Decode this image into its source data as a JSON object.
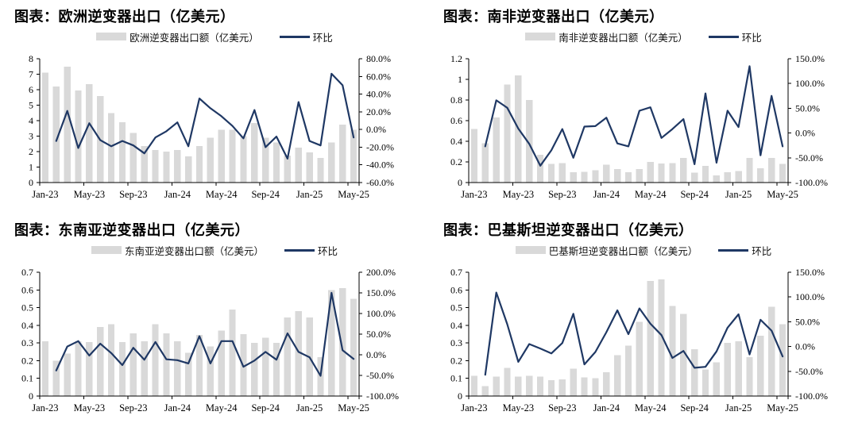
{
  "page": {
    "background": "#ffffff"
  },
  "colors": {
    "bar_fill": "#d9d9d9",
    "line_stroke": "#1f3864",
    "axis": "#000000",
    "text": "#000000"
  },
  "months": [
    "Jan-23",
    "Feb-23",
    "Mar-23",
    "Apr-23",
    "May-23",
    "Jun-23",
    "Jul-23",
    "Aug-23",
    "Sep-23",
    "Oct-23",
    "Nov-23",
    "Dec-23",
    "Jan-24",
    "Feb-24",
    "Mar-24",
    "Apr-24",
    "May-24",
    "Jun-24",
    "Jul-24",
    "Aug-24",
    "Sep-24",
    "Oct-24",
    "Nov-24",
    "Dec-24",
    "Jan-25",
    "Feb-25",
    "Mar-25",
    "Apr-25",
    "May-25"
  ],
  "x_tick_indices": [
    0,
    4,
    8,
    12,
    16,
    20,
    24,
    28
  ],
  "x_tick_labels": [
    "Jan-23",
    "May-23",
    "Sep-23",
    "Jan-24",
    "May-24",
    "Sep-24",
    "Jan-25",
    "May-25"
  ],
  "chart_data": [
    {
      "type": "bar+line",
      "title": "图表：欧洲逆变器出口（亿美元）",
      "legend": [
        "欧洲逆变器出口额（亿美元）",
        "环比"
      ],
      "left_axis": {
        "min": 0,
        "max": 8,
        "step": 1,
        "label": "亿美元"
      },
      "right_axis": {
        "min": -60,
        "max": 80,
        "step": 20,
        "unit": "%"
      },
      "bars": {
        "name": "欧洲逆变器出口额（亿美元）",
        "axis": "left",
        "values": [
          7.1,
          6.2,
          7.5,
          5.95,
          6.35,
          5.6,
          4.5,
          3.9,
          3.2,
          2.35,
          2.1,
          2.0,
          2.1,
          1.7,
          2.35,
          2.9,
          3.4,
          3.4,
          3.0,
          3.85,
          2.9,
          2.6,
          1.75,
          2.25,
          1.95,
          1.6,
          2.6,
          3.75,
          3.4
        ]
      },
      "line": {
        "name": "环比",
        "axis": "right",
        "values_pct": [
          null,
          -13,
          21,
          -21,
          7,
          -12,
          -19,
          -13,
          -18,
          -27,
          -9,
          -2,
          8,
          -19,
          35,
          24,
          15,
          4,
          -10,
          22,
          -20,
          -8,
          -33,
          31,
          -13,
          -18,
          63,
          50,
          -9
        ]
      }
    },
    {
      "type": "bar+line",
      "title": "图表：南非逆变器出口（亿美元）",
      "legend": [
        "南非逆变器出口额（亿美元）",
        "环比"
      ],
      "left_axis": {
        "min": 0,
        "max": 1.2,
        "step": 0.2,
        "label": "亿美元"
      },
      "right_axis": {
        "min": -100,
        "max": 150,
        "step": 50,
        "unit": "%"
      },
      "bars": {
        "name": "南非逆变器出口额（亿美元）",
        "axis": "left",
        "values": [
          0.52,
          0.38,
          0.63,
          0.95,
          1.04,
          0.8,
          0.27,
          0.18,
          0.19,
          0.1,
          0.105,
          0.12,
          0.175,
          0.13,
          0.1,
          0.13,
          0.2,
          0.185,
          0.19,
          0.24,
          0.095,
          0.16,
          0.07,
          0.1,
          0.11,
          0.24,
          0.14,
          0.24,
          0.18
        ]
      },
      "line": {
        "name": "环比",
        "axis": "right",
        "values_pct": [
          null,
          -27,
          66,
          51,
          9,
          -22,
          -66,
          -35,
          8,
          -50,
          13,
          14,
          31,
          -21,
          -27,
          45,
          52,
          -10,
          8,
          28,
          -63,
          80,
          -60,
          45,
          12,
          135,
          -45,
          75,
          -27
        ]
      }
    },
    {
      "type": "bar+line",
      "title": "图表：东南亚逆变器出口（亿美元）",
      "legend": [
        "东南亚逆变器出口额（亿美元）",
        "环比"
      ],
      "left_axis": {
        "min": 0,
        "max": 0.7,
        "step": 0.1,
        "label": "亿美元"
      },
      "right_axis": {
        "min": -100,
        "max": 200,
        "step": 50,
        "unit": "%"
      },
      "bars": {
        "name": "东南亚逆变器出口额（亿美元）",
        "axis": "left",
        "values": [
          0.31,
          0.2,
          0.24,
          0.31,
          0.305,
          0.39,
          0.405,
          0.305,
          0.355,
          0.31,
          0.405,
          0.355,
          0.31,
          0.245,
          0.345,
          0.28,
          0.37,
          0.49,
          0.35,
          0.3,
          0.33,
          0.3,
          0.445,
          0.48,
          0.445,
          0.22,
          0.6,
          0.61,
          0.55
        ]
      },
      "line": {
        "name": "环比",
        "axis": "right",
        "values_pct": [
          null,
          -38,
          20,
          33,
          -2,
          27,
          4,
          -25,
          17,
          -12,
          31,
          -11,
          -13,
          -21,
          45,
          -21,
          33,
          33,
          -29,
          -14,
          7,
          -12,
          52,
          7,
          -6,
          -51,
          150,
          11,
          -10
        ]
      }
    },
    {
      "type": "bar+line",
      "title": "图表：巴基斯坦逆变器出口（亿美元）",
      "legend": [
        "巴基斯坦逆变器出口额（亿美元）",
        "环比"
      ],
      "left_axis": {
        "min": 0,
        "max": 0.7,
        "step": 0.1,
        "label": "亿美元"
      },
      "right_axis": {
        "min": -100,
        "max": 150,
        "step": 50,
        "unit": "%"
      },
      "bars": {
        "name": "巴基斯坦逆变器出口额（亿美元）",
        "axis": "left",
        "values": [
          0.115,
          0.055,
          0.11,
          0.16,
          0.11,
          0.115,
          0.11,
          0.09,
          0.095,
          0.155,
          0.105,
          0.1,
          0.135,
          0.23,
          0.285,
          0.42,
          0.65,
          0.66,
          0.51,
          0.465,
          0.265,
          0.15,
          0.19,
          0.3,
          0.31,
          0.22,
          0.34,
          0.505,
          0.405
        ]
      },
      "line": {
        "name": "环比",
        "axis": "right",
        "values_pct": [
          null,
          -57,
          109,
          45,
          -31,
          5,
          -4,
          -14,
          7,
          66,
          -36,
          -11,
          29,
          73,
          25,
          77,
          46,
          23,
          -23,
          -9,
          -43,
          -41,
          -10,
          38,
          65,
          -16,
          54,
          32,
          -20
        ]
      }
    }
  ]
}
